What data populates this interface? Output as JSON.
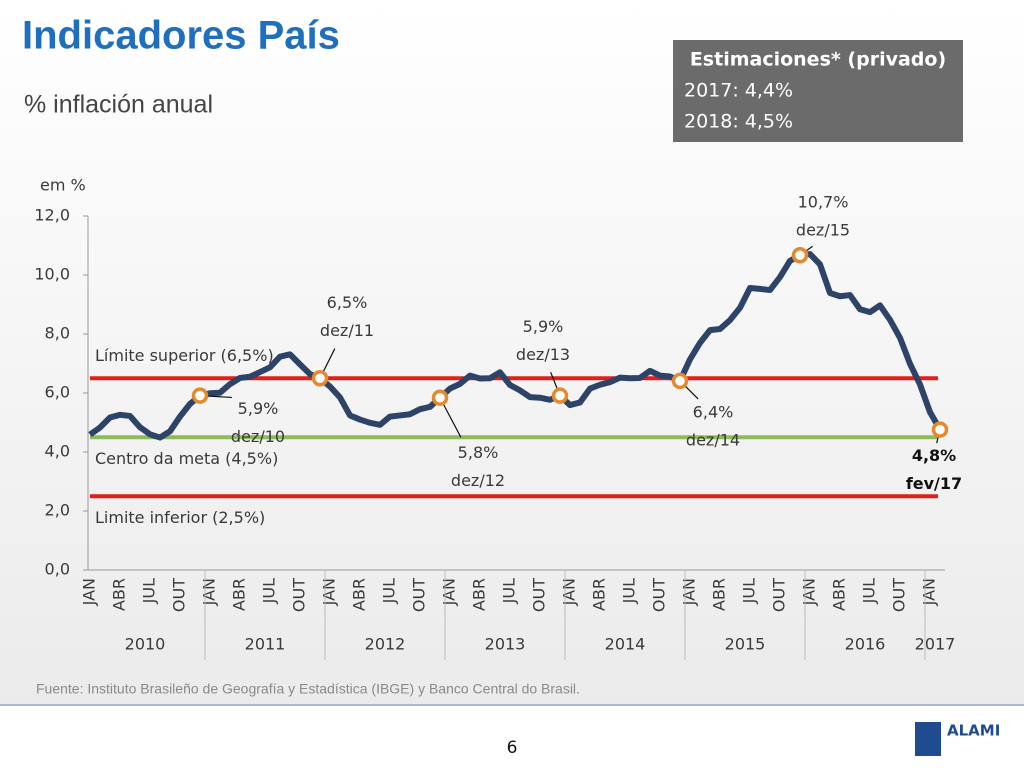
{
  "title": "Indicadores País",
  "subtitle": "% inflación anual",
  "estimates_box": {
    "heading": "Estimaciones* (privado)",
    "lines": [
      "2017: 4,4%",
      "2018: 4,5%"
    ]
  },
  "source": "Fuente: Instituto Brasileño de Geografía y Estadística (IBGE) y Banco Central do Brasil.",
  "page_number": "6",
  "logo": "ALAMI",
  "chart_data": {
    "type": "line",
    "y_unit_label": "em %",
    "categories": [
      "JAN",
      null,
      null,
      "ABR",
      null,
      null,
      "JUL",
      null,
      null,
      "OUT",
      null,
      null,
      "JAN",
      null,
      null,
      "ABR",
      null,
      null,
      "JUL",
      null,
      null,
      "OUT",
      null,
      null,
      "JAN",
      null,
      null,
      "ABR",
      null,
      null,
      "JUL",
      null,
      null,
      "OUT",
      null,
      null,
      "JAN",
      null,
      null,
      "ABR",
      null,
      null,
      "JUL",
      null,
      null,
      "OUT",
      null,
      null,
      "JAN",
      null,
      null,
      "ABR",
      null,
      null,
      "JUL",
      null,
      null,
      "OUT",
      null,
      null,
      "JAN",
      null,
      null,
      "ABR",
      null,
      null,
      "JUL",
      null,
      null,
      "OUT",
      null,
      null,
      "JAN",
      null,
      null,
      "ABR",
      null,
      null,
      "JUL",
      null,
      null,
      "OUT",
      null,
      null,
      "JAN",
      null
    ],
    "year_groups": [
      "2010",
      "2011",
      "2012",
      "2013",
      "2014",
      "2015",
      "2016",
      "2017"
    ],
    "series": [
      {
        "color": "#2d4468",
        "values": [
          4.59,
          4.83,
          5.17,
          5.26,
          5.22,
          4.84,
          4.6,
          4.49,
          4.7,
          5.2,
          5.63,
          5.91,
          5.99,
          6.01,
          6.3,
          6.51,
          6.55,
          6.71,
          6.87,
          7.23,
          7.31,
          6.97,
          6.64,
          6.5,
          6.22,
          5.85,
          5.24,
          5.1,
          4.99,
          4.92,
          5.2,
          5.24,
          5.28,
          5.45,
          5.53,
          5.84,
          6.15,
          6.31,
          6.59,
          6.49,
          6.5,
          6.7,
          6.27,
          6.09,
          5.86,
          5.84,
          5.77,
          5.91,
          5.59,
          5.68,
          6.15,
          6.28,
          6.37,
          6.52,
          6.5,
          6.51,
          6.75,
          6.59,
          6.56,
          6.41,
          7.14,
          7.7,
          8.13,
          8.17,
          8.47,
          8.89,
          9.56,
          9.53,
          9.49,
          9.93,
          10.48,
          10.67,
          10.71,
          10.36,
          9.39,
          9.28,
          9.32,
          8.84,
          8.74,
          8.97,
          8.48,
          7.87,
          6.99,
          6.29,
          5.35,
          4.76
        ],
        "value_labels": [
          null,
          null,
          null,
          null,
          null,
          null,
          null,
          null,
          null,
          null,
          null,
          "5,9%",
          null,
          null,
          null,
          null,
          null,
          null,
          null,
          null,
          null,
          null,
          null,
          "6,5%",
          null,
          null,
          null,
          null,
          null,
          null,
          null,
          null,
          null,
          null,
          null,
          "5,8%",
          null,
          null,
          null,
          null,
          null,
          null,
          null,
          null,
          null,
          null,
          null,
          "5,9%",
          null,
          null,
          null,
          null,
          null,
          null,
          null,
          null,
          null,
          null,
          null,
          "6,4%",
          null,
          null,
          null,
          null,
          null,
          null,
          null,
          null,
          null,
          null,
          null,
          "10,7%",
          null,
          null,
          null,
          null,
          null,
          null,
          null,
          null,
          null,
          null,
          null,
          null,
          null,
          "4,8%"
        ],
        "date_labels": [
          null,
          null,
          null,
          null,
          null,
          null,
          null,
          null,
          null,
          null,
          null,
          "dez/10",
          null,
          null,
          null,
          null,
          null,
          null,
          null,
          null,
          null,
          null,
          null,
          "dez/11",
          null,
          null,
          null,
          null,
          null,
          null,
          null,
          null,
          null,
          null,
          null,
          "dez/12",
          null,
          null,
          null,
          null,
          null,
          null,
          null,
          null,
          null,
          null,
          null,
          "dez/13",
          null,
          null,
          null,
          null,
          null,
          null,
          null,
          null,
          null,
          null,
          null,
          "dez/14",
          null,
          null,
          null,
          null,
          null,
          null,
          null,
          null,
          null,
          null,
          null,
          "dez/15",
          null,
          null,
          null,
          null,
          null,
          null,
          null,
          null,
          null,
          null,
          null,
          null,
          null,
          "fev/17"
        ],
        "marker_color": "#e38a2e"
      }
    ],
    "reference_lines": [
      {
        "label": "Límite superior (6,5%)",
        "value": 6.5,
        "color": "#e0201b"
      },
      {
        "label": "Centro da meta (4,5%)",
        "value": 4.5,
        "color": "#8dbb55"
      },
      {
        "label": "Limite inferior (2,5%)",
        "value": 2.5,
        "color": "#e0201b"
      }
    ],
    "ylim": [
      0,
      12
    ],
    "yticks": [
      {
        "value": 0,
        "label": "0,0"
      },
      {
        "value": 2,
        "label": "2,0"
      },
      {
        "value": 4,
        "label": "4,0"
      },
      {
        "value": 6,
        "label": "6,0"
      },
      {
        "value": 8,
        "label": "8,0"
      },
      {
        "value": 10,
        "label": "10,0"
      },
      {
        "value": 12,
        "label": "12,0"
      }
    ]
  }
}
